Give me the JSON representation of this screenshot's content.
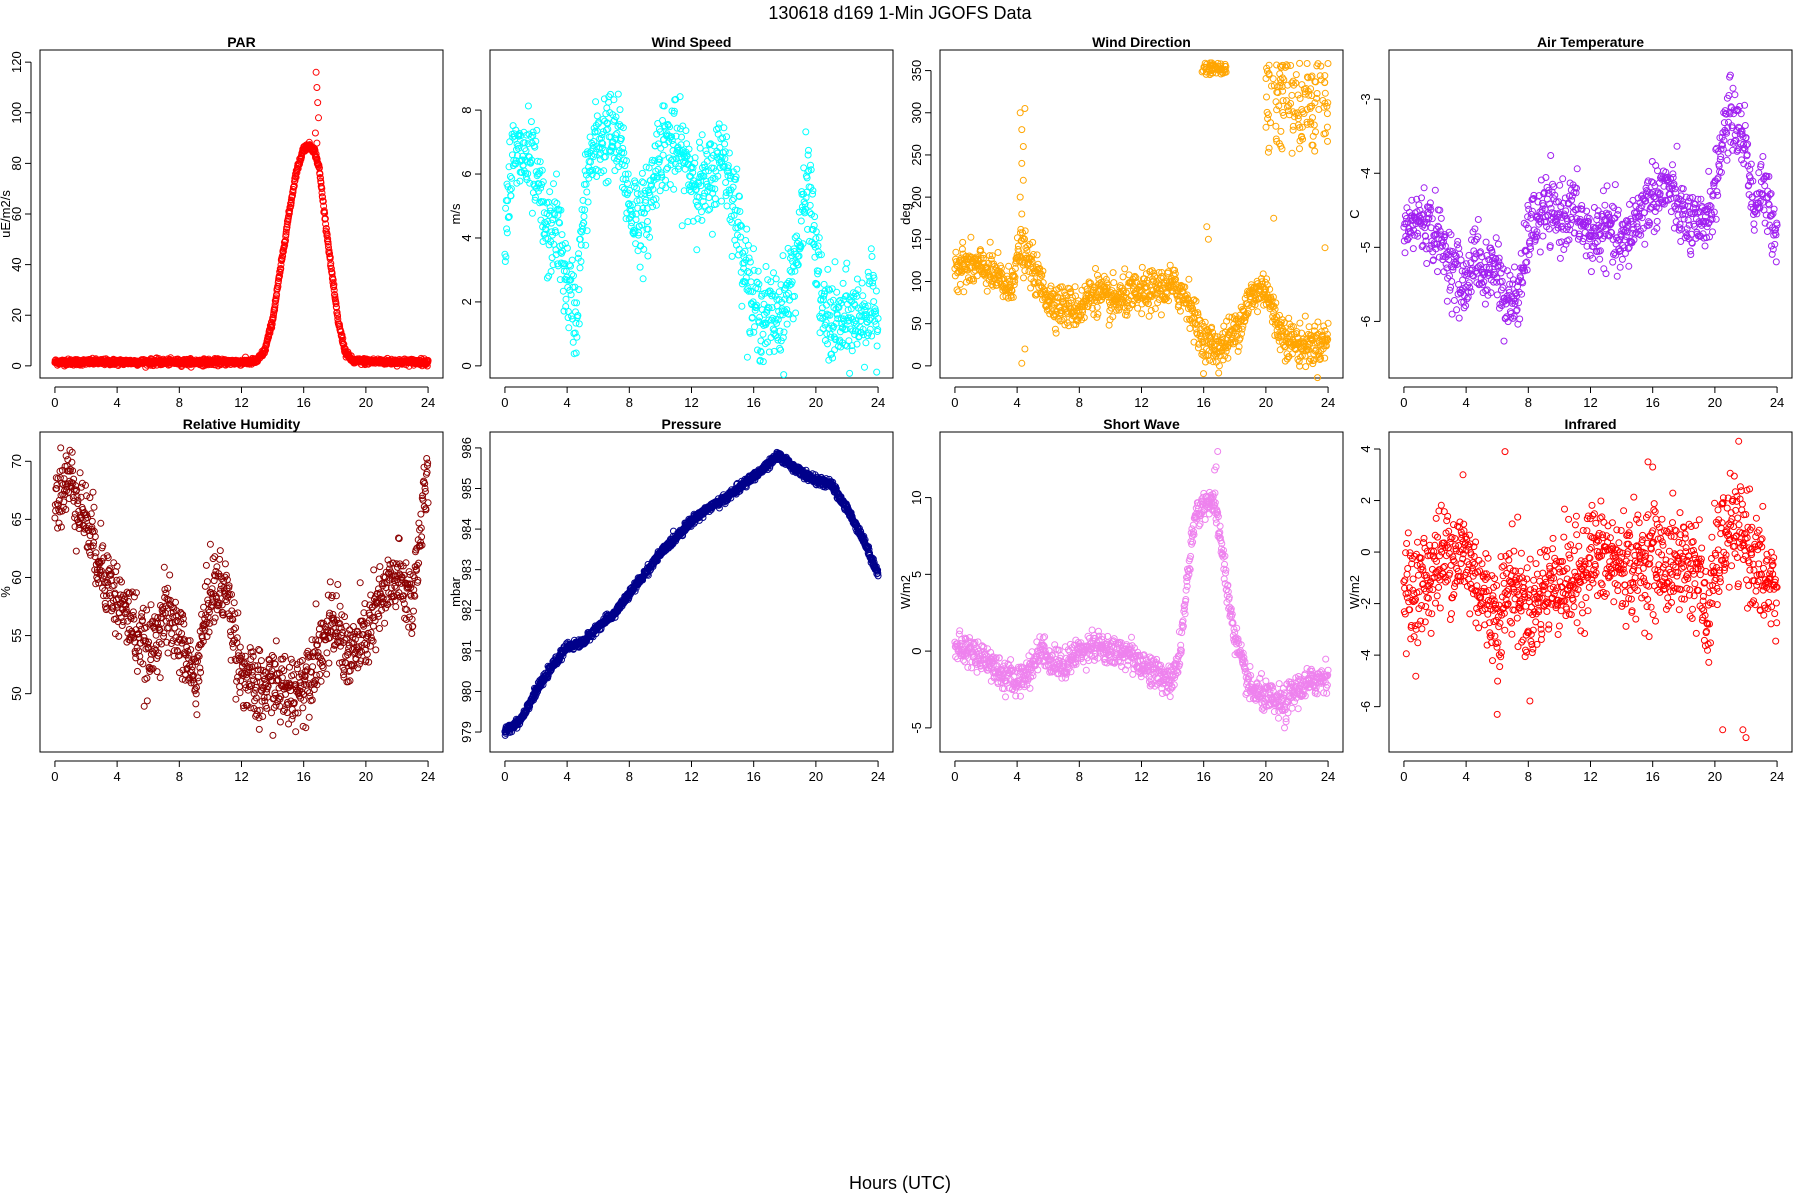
{
  "figure": {
    "title": "130618   d169   1-Min  JGOFS Data",
    "xlabel": "Hours (UTC)"
  },
  "chart_data": [
    {
      "type": "scatter",
      "title": "PAR",
      "ylabel": "uE/m2/s",
      "color": "#ff0000",
      "xlim": [
        0,
        24
      ],
      "ylim": [
        0,
        120
      ],
      "xticks": [
        0,
        4,
        8,
        12,
        16,
        20,
        24
      ],
      "yticks": [
        0,
        20,
        40,
        60,
        80,
        100,
        120
      ],
      "profile": [
        [
          0,
          1.5
        ],
        [
          12.5,
          1.5
        ],
        [
          13.0,
          2
        ],
        [
          13.5,
          6
        ],
        [
          14.0,
          18
        ],
        [
          14.5,
          38
        ],
        [
          15.0,
          58
        ],
        [
          15.5,
          76
        ],
        [
          16.0,
          86
        ],
        [
          16.4,
          87
        ],
        [
          16.7,
          85
        ],
        [
          17.0,
          78
        ],
        [
          17.3,
          62
        ],
        [
          17.7,
          42
        ],
        [
          18.2,
          18
        ],
        [
          18.7,
          5
        ],
        [
          19.2,
          1.8
        ],
        [
          24,
          1.5
        ]
      ],
      "outliers": [
        [
          16.8,
          116
        ],
        [
          16.85,
          110
        ],
        [
          16.9,
          104
        ],
        [
          16.95,
          98
        ],
        [
          16.75,
          92
        ],
        [
          16.85,
          88
        ]
      ],
      "noise": 0.6,
      "npoints": 1440
    },
    {
      "type": "scatter",
      "title": "Wind Speed",
      "ylabel": "m/s",
      "color": "#00ffff",
      "xlim": [
        0,
        24
      ],
      "ylim": [
        0,
        9.5
      ],
      "xticks": [
        0,
        4,
        8,
        12,
        16,
        20,
        24
      ],
      "yticks": [
        0,
        2,
        4,
        6,
        8
      ],
      "profile": [
        [
          0,
          4.5
        ],
        [
          0.5,
          6.5
        ],
        [
          1.5,
          6.5
        ],
        [
          2.2,
          5.5
        ],
        [
          2.7,
          4.0
        ],
        [
          3.3,
          4.5
        ],
        [
          4.0,
          2.5
        ],
        [
          4.6,
          1.5
        ],
        [
          5.0,
          4.5
        ],
        [
          5.5,
          6.5
        ],
        [
          6.5,
          7.3
        ],
        [
          7.5,
          6.8
        ],
        [
          8.0,
          5.0
        ],
        [
          9.0,
          4.5
        ],
        [
          10.0,
          7.0
        ],
        [
          11.0,
          6.8
        ],
        [
          12.0,
          6.0
        ],
        [
          13.0,
          5.5
        ],
        [
          14.0,
          6.8
        ],
        [
          15.0,
          4.5
        ],
        [
          16.0,
          1.8
        ],
        [
          17.0,
          1.5
        ],
        [
          18.0,
          1.8
        ],
        [
          19.0,
          4.0
        ],
        [
          19.5,
          6.0
        ],
        [
          20.0,
          3.5
        ],
        [
          20.5,
          1.5
        ],
        [
          21.5,
          1.3
        ],
        [
          22.5,
          1.5
        ],
        [
          23.5,
          1.8
        ],
        [
          24,
          1.5
        ]
      ],
      "noise": 0.7,
      "npoints": 1100
    },
    {
      "type": "scatter",
      "title": "Wind Direction",
      "ylabel": "deg",
      "color": "#ffa500",
      "xlim": [
        0,
        24
      ],
      "ylim": [
        0,
        360
      ],
      "xticks": [
        0,
        4,
        8,
        12,
        16,
        20,
        24
      ],
      "yticks": [
        0,
        50,
        100,
        150,
        200,
        250,
        300,
        350
      ],
      "profile": [
        [
          0,
          120
        ],
        [
          2,
          115
        ],
        [
          3,
          100
        ],
        [
          3.5,
          90
        ],
        [
          4.2,
          140
        ],
        [
          5,
          115
        ],
        [
          6,
          80
        ],
        [
          7,
          70
        ],
        [
          8,
          68
        ],
        [
          9,
          90
        ],
        [
          10,
          75
        ],
        [
          11,
          82
        ],
        [
          12,
          85
        ],
        [
          13,
          90
        ],
        [
          14,
          95
        ],
        [
          15,
          80
        ],
        [
          15.5,
          50
        ],
        [
          16,
          30
        ],
        [
          17,
          20
        ],
        [
          18,
          40
        ],
        [
          19,
          80
        ],
        [
          20,
          95
        ],
        [
          20.5,
          60
        ],
        [
          21,
          40
        ],
        [
          22,
          25
        ],
        [
          23,
          25
        ],
        [
          24,
          30
        ]
      ],
      "extra_clusters": [
        {
          "x": [
            15.8,
            17.5
          ],
          "y": [
            345,
            360
          ],
          "n": 50
        },
        {
          "x": [
            20.0,
            24.0
          ],
          "y": [
            250,
            360
          ],
          "n": 140
        }
      ],
      "outliers": [
        [
          4.2,
          300
        ],
        [
          4.5,
          305
        ],
        [
          4.3,
          280
        ],
        [
          4.4,
          260
        ],
        [
          4.3,
          240
        ],
        [
          4.4,
          220
        ],
        [
          4.2,
          200
        ],
        [
          4.3,
          180
        ],
        [
          16.2,
          165
        ],
        [
          16.3,
          150
        ],
        [
          20.5,
          175
        ],
        [
          23.8,
          140
        ],
        [
          4.5,
          20
        ],
        [
          4.3,
          3
        ]
      ],
      "noise": 12,
      "npoints": 1100
    },
    {
      "type": "scatter",
      "title": "Air Temperature",
      "ylabel": "C",
      "color": "#a020f0",
      "xlim": [
        0,
        24
      ],
      "ylim": [
        -6.6,
        -2.5
      ],
      "xticks": [
        0,
        4,
        8,
        12,
        16,
        20,
        24
      ],
      "yticks": [
        -6,
        -5,
        -4,
        -3
      ],
      "profile": [
        [
          0,
          -4.8
        ],
        [
          1,
          -4.6
        ],
        [
          2,
          -4.8
        ],
        [
          3,
          -5.2
        ],
        [
          4,
          -5.6
        ],
        [
          4.5,
          -5.0
        ],
        [
          5,
          -5.4
        ],
        [
          6,
          -5.2
        ],
        [
          6.5,
          -5.8
        ],
        [
          7.5,
          -5.6
        ],
        [
          8,
          -4.8
        ],
        [
          9,
          -4.5
        ],
        [
          10,
          -4.6
        ],
        [
          11,
          -4.5
        ],
        [
          12,
          -4.9
        ],
        [
          13,
          -4.7
        ],
        [
          14,
          -5.0
        ],
        [
          15,
          -4.6
        ],
        [
          16,
          -4.3
        ],
        [
          17,
          -4.2
        ],
        [
          18,
          -4.6
        ],
        [
          19,
          -4.8
        ],
        [
          20,
          -4.3
        ],
        [
          20.5,
          -3.5
        ],
        [
          21,
          -3.2
        ],
        [
          22,
          -3.6
        ],
        [
          22.5,
          -4.5
        ],
        [
          23,
          -4.2
        ],
        [
          24,
          -4.8
        ]
      ],
      "noise": 0.22,
      "npoints": 1000
    },
    {
      "type": "scatter",
      "title": "Relative Humidity",
      "ylabel": "%",
      "color": "#8b0000",
      "xlim": [
        0,
        24
      ],
      "ylim": [
        46,
        71.5
      ],
      "xticks": [
        0,
        4,
        8,
        12,
        16,
        20,
        24
      ],
      "yticks": [
        50,
        55,
        60,
        65,
        70
      ],
      "profile": [
        [
          0,
          67
        ],
        [
          1,
          68.5
        ],
        [
          2,
          65
        ],
        [
          3,
          61
        ],
        [
          4,
          58
        ],
        [
          5,
          56
        ],
        [
          6,
          53
        ],
        [
          7,
          57
        ],
        [
          8,
          55
        ],
        [
          9,
          51
        ],
        [
          10,
          59
        ],
        [
          11,
          59
        ],
        [
          12,
          52
        ],
        [
          13,
          50
        ],
        [
          14,
          51
        ],
        [
          15,
          50
        ],
        [
          16,
          51
        ],
        [
          17,
          54
        ],
        [
          18,
          56
        ],
        [
          19,
          53
        ],
        [
          20,
          55
        ],
        [
          21,
          58
        ],
        [
          22,
          60
        ],
        [
          23,
          58
        ],
        [
          23.5,
          64
        ],
        [
          24,
          69
        ]
      ],
      "noise": 1.6,
      "npoints": 1100
    },
    {
      "type": "scatter",
      "title": "Pressure",
      "ylabel": "mbar",
      "color": "#00008b",
      "xlim": [
        0,
        24
      ],
      "ylim": [
        978.8,
        986.1
      ],
      "xticks": [
        0,
        4,
        8,
        12,
        16,
        20,
        24
      ],
      "yticks": [
        979,
        980,
        981,
        982,
        983,
        984,
        985,
        986
      ],
      "profile": [
        [
          0,
          979.0
        ],
        [
          1,
          979.3
        ],
        [
          2,
          980.0
        ],
        [
          3,
          980.6
        ],
        [
          4,
          981.1
        ],
        [
          5,
          981.2
        ],
        [
          6,
          981.6
        ],
        [
          7,
          981.9
        ],
        [
          8,
          982.4
        ],
        [
          9,
          982.9
        ],
        [
          10,
          983.4
        ],
        [
          11,
          983.8
        ],
        [
          12,
          984.2
        ],
        [
          13,
          984.5
        ],
        [
          14,
          984.7
        ],
        [
          15,
          985.0
        ],
        [
          16,
          985.3
        ],
        [
          17,
          985.6
        ],
        [
          17.5,
          985.8
        ],
        [
          18,
          985.7
        ],
        [
          19,
          985.4
        ],
        [
          20,
          985.2
        ],
        [
          21,
          985.1
        ],
        [
          22,
          984.5
        ],
        [
          23,
          983.8
        ],
        [
          24,
          982.9
        ]
      ],
      "noise": 0.05,
      "npoints": 1440
    },
    {
      "type": "scatter",
      "title": "Short Wave",
      "ylabel": "W/m2",
      "color": "#ee82ee",
      "xlim": [
        0,
        24
      ],
      "ylim": [
        -5.8,
        13.5
      ],
      "xticks": [
        0,
        4,
        8,
        12,
        16,
        20,
        24
      ],
      "yticks": [
        -5,
        0,
        5,
        10
      ],
      "profile": [
        [
          0,
          0.2
        ],
        [
          1,
          0
        ],
        [
          2,
          -0.5
        ],
        [
          3,
          -1.5
        ],
        [
          4,
          -2
        ],
        [
          5,
          -1
        ],
        [
          5.5,
          0.3
        ],
        [
          6,
          -0.5
        ],
        [
          7,
          -1
        ],
        [
          8,
          0
        ],
        [
          9,
          0.5
        ],
        [
          10,
          -0.2
        ],
        [
          11,
          0
        ],
        [
          12,
          -0.8
        ],
        [
          13,
          -1.5
        ],
        [
          14,
          -2
        ],
        [
          14.5,
          0
        ],
        [
          15,
          5
        ],
        [
          15.5,
          9
        ],
        [
          16,
          9.5
        ],
        [
          16.5,
          10
        ],
        [
          17,
          8
        ],
        [
          17.5,
          4
        ],
        [
          18,
          1
        ],
        [
          18.5,
          -1
        ],
        [
          19,
          -2.5
        ],
        [
          20,
          -3
        ],
        [
          21,
          -3.5
        ],
        [
          22,
          -2.5
        ],
        [
          23,
          -2
        ],
        [
          24,
          -1.5
        ]
      ],
      "outliers": [
        [
          16.9,
          13
        ],
        [
          16.8,
          12
        ],
        [
          16.7,
          11.8
        ],
        [
          21.2,
          -5
        ],
        [
          21.3,
          -4.6
        ]
      ],
      "noise": 0.5,
      "npoints": 1100
    },
    {
      "type": "scatter",
      "title": "Infrared",
      "ylabel": "W/m2",
      "color": "#ff0000",
      "xlim": [
        0,
        24
      ],
      "ylim": [
        -7.3,
        4.2
      ],
      "xticks": [
        0,
        4,
        8,
        12,
        16,
        20,
        24
      ],
      "yticks": [
        -6,
        -4,
        -2,
        0,
        2,
        4
      ],
      "profile": [
        [
          0,
          -1.5
        ],
        [
          1,
          -1.5
        ],
        [
          2,
          -0.5
        ],
        [
          3,
          0
        ],
        [
          4,
          -0.2
        ],
        [
          5,
          -1.5
        ],
        [
          6,
          -2.5
        ],
        [
          7,
          -1
        ],
        [
          8,
          -2.5
        ],
        [
          9,
          -1.5
        ],
        [
          10,
          -1
        ],
        [
          11,
          -1.2
        ],
        [
          12,
          0
        ],
        [
          13,
          -0.3
        ],
        [
          14,
          -0.5
        ],
        [
          15,
          -0.5
        ],
        [
          16,
          -0.2
        ],
        [
          17,
          -0.5
        ],
        [
          18,
          -0.3
        ],
        [
          19,
          -0.8
        ],
        [
          19.5,
          -3
        ],
        [
          20,
          -0.5
        ],
        [
          21,
          1
        ],
        [
          22,
          0.5
        ],
        [
          23,
          -1
        ],
        [
          24,
          -1.5
        ]
      ],
      "outliers": [
        [
          6.5,
          3.9
        ],
        [
          15.7,
          3.5
        ],
        [
          16.0,
          3.3
        ],
        [
          20.5,
          -6.9
        ],
        [
          21.8,
          -6.9
        ],
        [
          22.0,
          -7.2
        ],
        [
          6.0,
          -6.3
        ],
        [
          3.8,
          3.0
        ]
      ],
      "noise": 1.0,
      "npoints": 1100
    }
  ]
}
